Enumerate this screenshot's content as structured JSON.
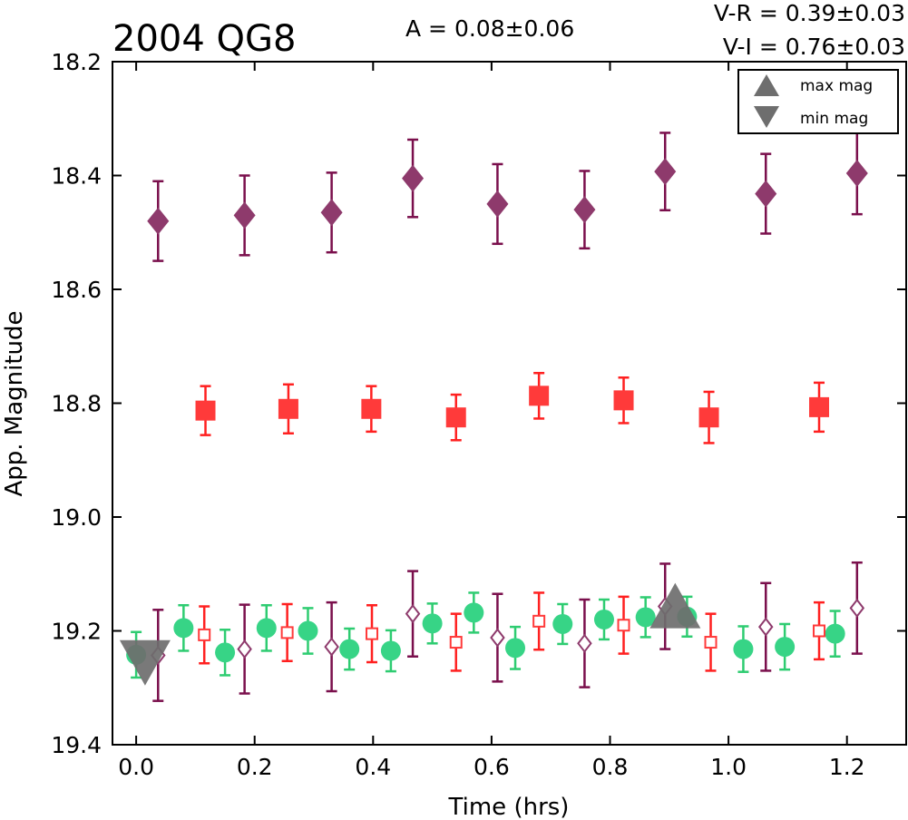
{
  "chart_data": {
    "type": "scatter",
    "title": "2004 QG8",
    "annotations": {
      "amplitude": "A  = 0.08±0.06",
      "v_r": "V-R = 0.39±0.03",
      "v_i": "V-I  = 0.76±0.03"
    },
    "xlabel": "Time (hrs)",
    "ylabel": "App. Magnitude",
    "xlim": [
      -0.04,
      1.3
    ],
    "ylim": [
      19.4,
      18.2
    ],
    "y_inverted": true,
    "grid": false,
    "xticks": [
      "0.0",
      "0.2",
      "0.4",
      "0.6",
      "0.8",
      "1.0",
      "1.2"
    ],
    "yticks": [
      "18.2",
      "18.4",
      "18.6",
      "18.8",
      "19.0",
      "19.2",
      "19.4"
    ],
    "legend": {
      "placement": "top-right",
      "entries": [
        "max mag",
        "min mag"
      ]
    },
    "colors": {
      "purple": "#7a0f4c",
      "purple_fill": "#8e3a6c",
      "red": "#ff2020",
      "red_fill": "#ff3a3a",
      "green": "#2ecc71",
      "green_fill": "#37d486",
      "gray": "#6e6e6e"
    },
    "series": [
      {
        "marker": "diamond-filled",
        "color": "purple",
        "points": [
          {
            "x": 0.037,
            "y": 18.48,
            "err": 0.07
          },
          {
            "x": 0.183,
            "y": 18.47,
            "err": 0.07
          },
          {
            "x": 0.33,
            "y": 18.465,
            "err": 0.07
          },
          {
            "x": 0.467,
            "y": 18.405,
            "err": 0.068
          },
          {
            "x": 0.61,
            "y": 18.45,
            "err": 0.07
          },
          {
            "x": 0.757,
            "y": 18.46,
            "err": 0.068
          },
          {
            "x": 0.893,
            "y": 18.393,
            "err": 0.068
          },
          {
            "x": 1.063,
            "y": 18.432,
            "err": 0.07
          },
          {
            "x": 1.217,
            "y": 18.396,
            "err": 0.072
          }
        ]
      },
      {
        "marker": "square-filled",
        "color": "red",
        "points": [
          {
            "x": 0.117,
            "y": 18.813,
            "err": 0.043
          },
          {
            "x": 0.257,
            "y": 18.81,
            "err": 0.043
          },
          {
            "x": 0.397,
            "y": 18.81,
            "err": 0.04
          },
          {
            "x": 0.54,
            "y": 18.825,
            "err": 0.04
          },
          {
            "x": 0.68,
            "y": 18.787,
            "err": 0.04
          },
          {
            "x": 0.823,
            "y": 18.795,
            "err": 0.04
          },
          {
            "x": 0.967,
            "y": 18.825,
            "err": 0.045
          },
          {
            "x": 1.153,
            "y": 18.807,
            "err": 0.043
          }
        ]
      },
      {
        "marker": "circle-filled",
        "color": "green",
        "points": [
          {
            "x": 0.0,
            "y": 19.242,
            "err": 0.04
          },
          {
            "x": 0.08,
            "y": 19.195,
            "err": 0.04
          },
          {
            "x": 0.15,
            "y": 19.238,
            "err": 0.04
          },
          {
            "x": 0.22,
            "y": 19.195,
            "err": 0.04
          },
          {
            "x": 0.29,
            "y": 19.2,
            "err": 0.04
          },
          {
            "x": 0.36,
            "y": 19.232,
            "err": 0.036
          },
          {
            "x": 0.43,
            "y": 19.235,
            "err": 0.036
          },
          {
            "x": 0.5,
            "y": 19.187,
            "err": 0.035
          },
          {
            "x": 0.57,
            "y": 19.168,
            "err": 0.035
          },
          {
            "x": 0.64,
            "y": 19.23,
            "err": 0.037
          },
          {
            "x": 0.72,
            "y": 19.188,
            "err": 0.035
          },
          {
            "x": 0.79,
            "y": 19.18,
            "err": 0.035
          },
          {
            "x": 0.86,
            "y": 19.176,
            "err": 0.035
          },
          {
            "x": 0.93,
            "y": 19.175,
            "err": 0.035
          },
          {
            "x": 1.025,
            "y": 19.232,
            "err": 0.04
          },
          {
            "x": 1.095,
            "y": 19.228,
            "err": 0.04
          },
          {
            "x": 1.18,
            "y": 19.205,
            "err": 0.04
          }
        ]
      },
      {
        "marker": "square-open",
        "color": "red",
        "points": [
          {
            "x": 0.115,
            "y": 19.207,
            "err": 0.05
          },
          {
            "x": 0.255,
            "y": 19.203,
            "err": 0.05
          },
          {
            "x": 0.398,
            "y": 19.205,
            "err": 0.05
          },
          {
            "x": 0.54,
            "y": 19.22,
            "err": 0.05
          },
          {
            "x": 0.68,
            "y": 19.183,
            "err": 0.05
          },
          {
            "x": 0.823,
            "y": 19.19,
            "err": 0.05
          },
          {
            "x": 0.97,
            "y": 19.22,
            "err": 0.05
          },
          {
            "x": 1.153,
            "y": 19.2,
            "err": 0.05
          }
        ]
      },
      {
        "marker": "diamond-open",
        "color": "purple",
        "points": [
          {
            "x": 0.037,
            "y": 19.243,
            "err": 0.08
          },
          {
            "x": 0.183,
            "y": 19.232,
            "err": 0.078
          },
          {
            "x": 0.33,
            "y": 19.228,
            "err": 0.078
          },
          {
            "x": 0.467,
            "y": 19.17,
            "err": 0.075
          },
          {
            "x": 0.61,
            "y": 19.212,
            "err": 0.077
          },
          {
            "x": 0.757,
            "y": 19.222,
            "err": 0.077
          },
          {
            "x": 0.893,
            "y": 19.157,
            "err": 0.075
          },
          {
            "x": 1.063,
            "y": 19.193,
            "err": 0.077
          },
          {
            "x": 1.217,
            "y": 19.16,
            "err": 0.08
          }
        ]
      }
    ],
    "extrema": [
      {
        "type": "min",
        "x": 0.015,
        "y": 19.245
      },
      {
        "type": "max",
        "x": 0.91,
        "y": 19.17
      }
    ]
  }
}
